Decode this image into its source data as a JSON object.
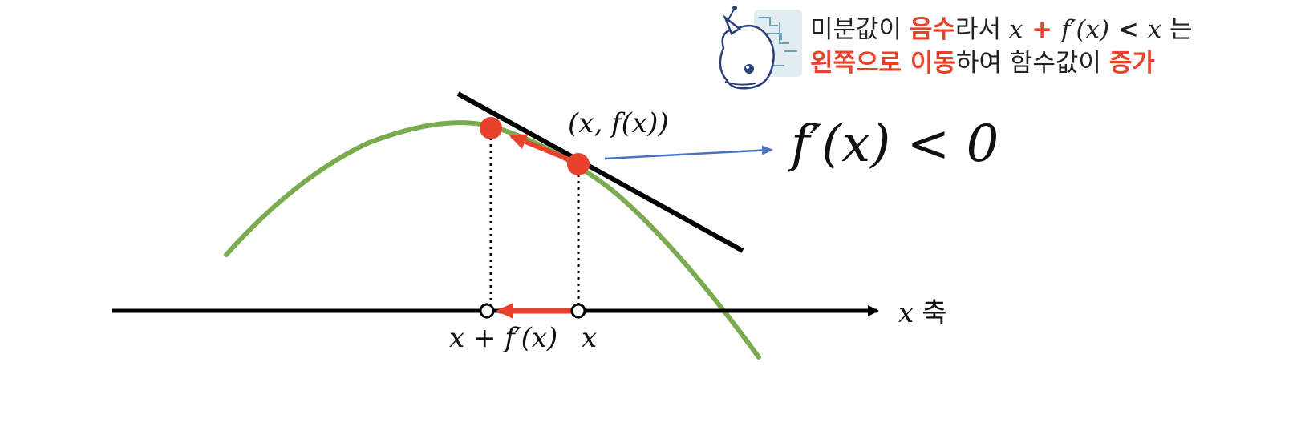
{
  "colors": {
    "curve": "#7aab4f",
    "tangent": "#000000",
    "highlight": "#e8412c",
    "pointer": "#4a72c4",
    "axis": "#000000"
  },
  "icons": [
    "robot-mascot-icon"
  ],
  "callout": {
    "line1": [
      {
        "text": "미분값이 ",
        "style": "normal"
      },
      {
        "text": "음수",
        "style": "highlight"
      },
      {
        "text": "라서 ",
        "style": "normal"
      },
      {
        "text": "x",
        "style": "math"
      },
      {
        "text": " + ",
        "style": "highlight-op"
      },
      {
        "text": "f′(x)",
        "style": "math"
      },
      {
        "text": " < ",
        "style": "op"
      },
      {
        "text": "x",
        "style": "math"
      },
      {
        "text": " 는",
        "style": "normal"
      }
    ],
    "line2": [
      {
        "text": "왼쪽으로 이동",
        "style": "highlight"
      },
      {
        "text": "하여 함수값이 ",
        "style": "normal"
      },
      {
        "text": "증가",
        "style": "highlight"
      }
    ]
  },
  "labels": {
    "point": "(x, f(x))",
    "derivative_condition": "f′(x) < 0",
    "axis_var": "x",
    "axis_word": "축",
    "tick_new": "x + f′(x)",
    "tick_x": "x"
  }
}
